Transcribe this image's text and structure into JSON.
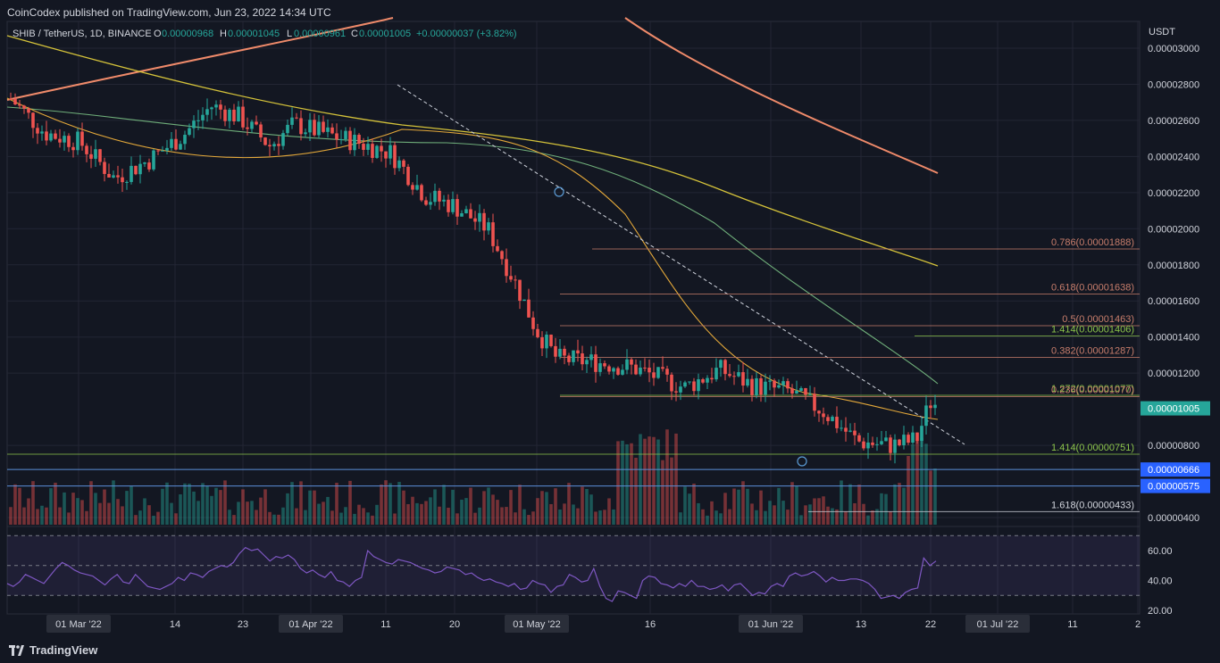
{
  "header": {
    "published": "CoinCodex published on TradingView.com, Jun 23, 2022 14:34 UTC",
    "symbol": "SHIB / TetherUS, 1D, BINANCE",
    "o_label": "O",
    "o_value": "0.00000968",
    "h_label": "H",
    "h_value": "0.00001045",
    "l_label": "L",
    "l_value": "0.00000961",
    "c_label": "C",
    "c_value": "0.00001005",
    "change": "+0.00000037 (+3.82%)"
  },
  "footer": {
    "brand": "TradingView"
  },
  "colors": {
    "background": "#131722",
    "up": "#26a69a",
    "down": "#ef5350",
    "text": "#d1d4dc",
    "grid": "#232634",
    "rsi": "#7e57c2"
  },
  "chart_data": {
    "type": "candlestick",
    "currency": "USDT",
    "price_range": [
      3.7e-06,
      3.1e-06
    ],
    "y_ticks": [
      "0.00003000",
      "0.00002800",
      "0.00002600",
      "0.00002400",
      "0.00002200",
      "0.00002000",
      "0.00001800",
      "0.00001600",
      "0.00001400",
      "0.00001200",
      "0.00000800",
      "0.00000400"
    ],
    "x_labels": [
      "01 Mar '22",
      "14",
      "23",
      "01 Apr '22",
      "11",
      "20",
      "01 May '22",
      "16",
      "01 Jun '22",
      "13",
      "22",
      "01 Jul '22",
      "11",
      "2"
    ],
    "last_price": "0.00001005",
    "support_labels": [
      "0.00000666",
      "0.00000575"
    ],
    "fib_levels": [
      {
        "label": "0.786(0.00001888)",
        "value": 1.888e-05,
        "color": "#c77d6b"
      },
      {
        "label": "0.618(0.00001638)",
        "value": 1.638e-05,
        "color": "#c77d6b"
      },
      {
        "label": "0.5(0.00001463)",
        "value": 1.463e-05,
        "color": "#c77d6b"
      },
      {
        "label": "1.414(0.00001406)",
        "value": 1.406e-05,
        "color": "#8bc34a"
      },
      {
        "label": "0.382(0.00001287)",
        "value": 1.287e-05,
        "color": "#c77d6b"
      },
      {
        "label": "1.272(0.00001077)",
        "value": 1.077e-05,
        "color": "#8bc34a"
      },
      {
        "label": "0.236(0.00001070)",
        "value": 1.07e-05,
        "color": "#c77d6b"
      },
      {
        "label": "1.414(0.00000751)",
        "value": 7.51e-06,
        "color": "#8bc34a"
      },
      {
        "label": "1.618(0.00000433)",
        "value": 4.33e-06,
        "color": "#d1d4dc"
      }
    ],
    "rsi": {
      "ticks": [
        "60.00",
        "40.00",
        "20.00"
      ],
      "levels": [
        70,
        50,
        30
      ],
      "values": [
        38,
        36,
        39,
        44,
        42,
        40,
        38,
        43,
        48,
        52,
        50,
        47,
        45,
        44,
        43,
        40,
        37,
        41,
        44,
        39,
        38,
        44,
        40,
        36,
        35,
        34,
        36,
        38,
        42,
        40,
        45,
        44,
        42,
        46,
        48,
        50,
        49,
        52,
        58,
        62,
        60,
        61,
        57,
        53,
        56,
        55,
        57,
        54,
        48,
        45,
        47,
        44,
        42,
        46,
        40,
        39,
        36,
        40,
        42,
        60,
        56,
        54,
        52,
        51,
        54,
        53,
        52,
        50,
        48,
        47,
        45,
        46,
        49,
        48,
        47,
        44,
        45,
        42,
        40,
        41,
        39,
        38,
        36,
        38,
        34,
        35,
        40,
        38,
        37,
        32,
        36,
        37,
        44,
        42,
        39,
        40,
        48,
        36,
        28,
        26,
        33,
        32,
        30,
        28,
        40,
        43,
        42,
        38,
        37,
        35,
        38,
        36,
        40,
        36,
        36,
        34,
        35,
        37,
        33,
        37,
        38,
        34,
        30,
        32,
        31,
        36,
        38,
        36,
        43,
        45,
        43,
        44,
        46,
        43,
        39,
        42,
        40,
        40,
        41,
        41,
        40,
        38,
        34,
        28,
        29,
        30,
        28,
        32,
        34,
        35,
        55,
        50,
        53
      ]
    },
    "candles_summary": {
      "start_price_approx": 2.74e-05,
      "peak_approx": 2.97e-05,
      "end_price": 1.005e-05
    }
  }
}
